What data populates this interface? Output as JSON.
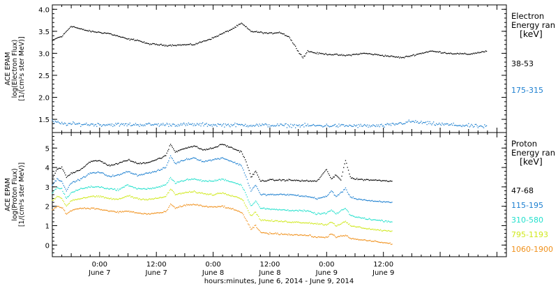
{
  "chart_data": [
    {
      "type": "scatter",
      "panel": "electron",
      "ylabel_lines": [
        "ACE EPAM",
        "log(Electron Flux)",
        "[1/(cm²s ster MeV)]"
      ],
      "ylim": [
        1.2,
        4.1
      ],
      "yticks": [
        "1.5",
        "2.0",
        "2.5",
        "3.0",
        "3.5",
        "4.0"
      ],
      "legend_title": [
        "Electron",
        "Energy ran"
      ],
      "legend_unit": "[keV]",
      "xlim_hours": [
        -10,
        86
      ],
      "series": [
        {
          "name": "38-53",
          "color": "#000000",
          "keypoints": [
            [
              -10,
              3.28
            ],
            [
              -9,
              3.35
            ],
            [
              -8,
              3.38
            ],
            [
              -6,
              3.62
            ],
            [
              -4,
              3.55
            ],
            [
              -2,
              3.5
            ],
            [
              2,
              3.45
            ],
            [
              6,
              3.32
            ],
            [
              8,
              3.3
            ],
            [
              10,
              3.22
            ],
            [
              14,
              3.18
            ],
            [
              20,
              3.2
            ],
            [
              24,
              3.35
            ],
            [
              28,
              3.55
            ],
            [
              30,
              3.68
            ],
            [
              32,
              3.5
            ],
            [
              36,
              3.45
            ],
            [
              38,
              3.48
            ],
            [
              40,
              3.38
            ],
            [
              42,
              3.05
            ],
            [
              43,
              2.9
            ],
            [
              44,
              3.05
            ],
            [
              46,
              3.0
            ],
            [
              52,
              2.95
            ],
            [
              56,
              3.0
            ],
            [
              60,
              2.95
            ],
            [
              64,
              2.9
            ],
            [
              70,
              3.05
            ],
            [
              74,
              3.0
            ],
            [
              78,
              2.98
            ],
            [
              82,
              3.05
            ]
          ]
        },
        {
          "name": "175-315",
          "color": "#1c7fd0",
          "keypoints": [
            [
              -10,
              1.45
            ],
            [
              -8,
              1.4
            ],
            [
              0,
              1.38
            ],
            [
              20,
              1.38
            ],
            [
              40,
              1.36
            ],
            [
              60,
              1.35
            ],
            [
              66,
              1.45
            ],
            [
              70,
              1.4
            ],
            [
              82,
              1.33
            ]
          ]
        }
      ]
    },
    {
      "type": "scatter",
      "panel": "proton",
      "ylabel_lines": [
        "ACE EPAM",
        "log(Proton Flux)",
        "[1/(cm²s ster MeV)]"
      ],
      "ylim": [
        -0.6,
        5.8
      ],
      "yticks": [
        "0",
        "1",
        "2",
        "3",
        "4",
        "5"
      ],
      "legend_title": [
        "Proton",
        "Energy ran"
      ],
      "legend_unit": "[keV]",
      "xlim_hours": [
        -10,
        86
      ],
      "xticks": [
        {
          "hour": 0,
          "time": "0:00",
          "date": "June 7"
        },
        {
          "hour": 12,
          "time": "12:00",
          "date": "June 7"
        },
        {
          "hour": 24,
          "time": "0:00",
          "date": "June 8"
        },
        {
          "hour": 36,
          "time": "12:00",
          "date": "June 8"
        },
        {
          "hour": 48,
          "time": "0:00",
          "date": "June 9"
        },
        {
          "hour": 60,
          "time": "12:00",
          "date": "June 9"
        }
      ],
      "xlabel": "hours:minutes, June  6, 2014 - June  9, 2014",
      "series": [
        {
          "name": "47-68",
          "color": "#000000",
          "keypoints": [
            [
              -10,
              3.4
            ],
            [
              -9,
              3.9
            ],
            [
              -8,
              4.0
            ],
            [
              -7,
              3.5
            ],
            [
              -6,
              3.7
            ],
            [
              -4,
              3.9
            ],
            [
              -2,
              4.3
            ],
            [
              0,
              4.35
            ],
            [
              2,
              4.1
            ],
            [
              4,
              4.2
            ],
            [
              6,
              4.4
            ],
            [
              8,
              4.2
            ],
            [
              10,
              4.25
            ],
            [
              12,
              4.4
            ],
            [
              14,
              4.6
            ],
            [
              15,
              5.2
            ],
            [
              16,
              4.8
            ],
            [
              18,
              5.0
            ],
            [
              20,
              5.1
            ],
            [
              22,
              4.9
            ],
            [
              24,
              5.0
            ],
            [
              26,
              5.2
            ],
            [
              28,
              5.0
            ],
            [
              30,
              4.8
            ],
            [
              31,
              4.3
            ],
            [
              32,
              3.5
            ],
            [
              33,
              3.8
            ],
            [
              34,
              3.3
            ],
            [
              36,
              3.35
            ],
            [
              40,
              3.35
            ],
            [
              44,
              3.3
            ],
            [
              46,
              3.3
            ],
            [
              48,
              3.9
            ],
            [
              49,
              3.4
            ],
            [
              50,
              3.6
            ],
            [
              51,
              3.35
            ],
            [
              52,
              4.4
            ],
            [
              53,
              3.5
            ],
            [
              54,
              3.4
            ],
            [
              58,
              3.35
            ],
            [
              62,
              3.3
            ]
          ]
        },
        {
          "name": "115-195",
          "color": "#1c7fd0",
          "keypoints": [
            [
              -10,
              3.1
            ],
            [
              -9,
              3.4
            ],
            [
              -8,
              3.3
            ],
            [
              -7,
              2.8
            ],
            [
              -6,
              3.2
            ],
            [
              -4,
              3.4
            ],
            [
              -2,
              3.7
            ],
            [
              0,
              3.75
            ],
            [
              2,
              3.55
            ],
            [
              4,
              3.6
            ],
            [
              6,
              3.8
            ],
            [
              8,
              3.6
            ],
            [
              10,
              3.7
            ],
            [
              12,
              3.8
            ],
            [
              14,
              4.0
            ],
            [
              15,
              4.6
            ],
            [
              16,
              4.2
            ],
            [
              18,
              4.4
            ],
            [
              20,
              4.5
            ],
            [
              22,
              4.3
            ],
            [
              24,
              4.4
            ],
            [
              26,
              4.5
            ],
            [
              28,
              4.3
            ],
            [
              30,
              4.1
            ],
            [
              31,
              3.5
            ],
            [
              32,
              2.8
            ],
            [
              33,
              3.1
            ],
            [
              34,
              2.6
            ],
            [
              36,
              2.6
            ],
            [
              40,
              2.6
            ],
            [
              44,
              2.5
            ],
            [
              46,
              2.4
            ],
            [
              48,
              2.5
            ],
            [
              49,
              2.8
            ],
            [
              50,
              2.5
            ],
            [
              52,
              2.9
            ],
            [
              53,
              2.5
            ],
            [
              54,
              2.4
            ],
            [
              58,
              2.25
            ],
            [
              62,
              2.2
            ]
          ]
        },
        {
          "name": "310-580",
          "color": "#22e0cc",
          "keypoints": [
            [
              -10,
              2.7
            ],
            [
              -9,
              2.95
            ],
            [
              -8,
              2.9
            ],
            [
              -7,
              2.4
            ],
            [
              -6,
              2.7
            ],
            [
              -4,
              2.9
            ],
            [
              -2,
              3.0
            ],
            [
              0,
              3.0
            ],
            [
              2,
              2.9
            ],
            [
              4,
              2.85
            ],
            [
              6,
              3.1
            ],
            [
              8,
              2.9
            ],
            [
              10,
              2.9
            ],
            [
              12,
              2.95
            ],
            [
              14,
              3.1
            ],
            [
              15,
              3.5
            ],
            [
              16,
              3.2
            ],
            [
              18,
              3.35
            ],
            [
              20,
              3.4
            ],
            [
              22,
              3.3
            ],
            [
              24,
              3.3
            ],
            [
              26,
              3.4
            ],
            [
              28,
              3.25
            ],
            [
              30,
              3.1
            ],
            [
              31,
              2.6
            ],
            [
              32,
              2.0
            ],
            [
              33,
              2.3
            ],
            [
              34,
              1.9
            ],
            [
              36,
              1.85
            ],
            [
              40,
              1.8
            ],
            [
              44,
              1.75
            ],
            [
              46,
              1.6
            ],
            [
              48,
              1.65
            ],
            [
              49,
              1.8
            ],
            [
              50,
              1.6
            ],
            [
              52,
              1.9
            ],
            [
              53,
              1.55
            ],
            [
              54,
              1.45
            ],
            [
              58,
              1.3
            ],
            [
              62,
              1.2
            ]
          ]
        },
        {
          "name": "795-1193",
          "color": "#cfe81a",
          "keypoints": [
            [
              -10,
              2.3
            ],
            [
              -9,
              2.5
            ],
            [
              -8,
              2.4
            ],
            [
              -7,
              2.0
            ],
            [
              -6,
              2.3
            ],
            [
              -4,
              2.4
            ],
            [
              -2,
              2.5
            ],
            [
              0,
              2.5
            ],
            [
              2,
              2.4
            ],
            [
              4,
              2.35
            ],
            [
              6,
              2.55
            ],
            [
              8,
              2.4
            ],
            [
              10,
              2.35
            ],
            [
              12,
              2.4
            ],
            [
              14,
              2.5
            ],
            [
              15,
              2.9
            ],
            [
              16,
              2.6
            ],
            [
              18,
              2.7
            ],
            [
              20,
              2.75
            ],
            [
              22,
              2.65
            ],
            [
              24,
              2.6
            ],
            [
              26,
              2.7
            ],
            [
              28,
              2.55
            ],
            [
              30,
              2.4
            ],
            [
              31,
              2.0
            ],
            [
              32,
              1.5
            ],
            [
              33,
              1.7
            ],
            [
              34,
              1.3
            ],
            [
              36,
              1.25
            ],
            [
              40,
              1.2
            ],
            [
              44,
              1.15
            ],
            [
              46,
              1.1
            ],
            [
              48,
              1.05
            ],
            [
              49,
              1.2
            ],
            [
              50,
              1.0
            ],
            [
              52,
              1.2
            ],
            [
              53,
              1.0
            ],
            [
              54,
              0.95
            ],
            [
              58,
              0.8
            ],
            [
              62,
              0.7
            ]
          ]
        },
        {
          "name": "1060-1900",
          "color": "#f0901a",
          "keypoints": [
            [
              -10,
              1.8
            ],
            [
              -9,
              2.0
            ],
            [
              -8,
              1.95
            ],
            [
              -7,
              1.6
            ],
            [
              -6,
              1.8
            ],
            [
              -4,
              1.9
            ],
            [
              -2,
              1.9
            ],
            [
              0,
              1.85
            ],
            [
              2,
              1.75
            ],
            [
              4,
              1.7
            ],
            [
              6,
              1.75
            ],
            [
              8,
              1.65
            ],
            [
              10,
              1.6
            ],
            [
              12,
              1.65
            ],
            [
              14,
              1.7
            ],
            [
              15,
              2.1
            ],
            [
              16,
              1.9
            ],
            [
              18,
              2.05
            ],
            [
              20,
              2.1
            ],
            [
              22,
              2.0
            ],
            [
              24,
              1.95
            ],
            [
              26,
              2.0
            ],
            [
              28,
              1.85
            ],
            [
              30,
              1.7
            ],
            [
              31,
              1.3
            ],
            [
              32,
              0.8
            ],
            [
              33,
              1.0
            ],
            [
              34,
              0.65
            ],
            [
              36,
              0.6
            ],
            [
              40,
              0.55
            ],
            [
              44,
              0.5
            ],
            [
              46,
              0.4
            ],
            [
              48,
              0.4
            ],
            [
              49,
              0.6
            ],
            [
              50,
              0.4
            ],
            [
              52,
              0.5
            ],
            [
              53,
              0.35
            ],
            [
              54,
              0.3
            ],
            [
              58,
              0.2
            ],
            [
              62,
              0.05
            ]
          ]
        }
      ]
    }
  ]
}
